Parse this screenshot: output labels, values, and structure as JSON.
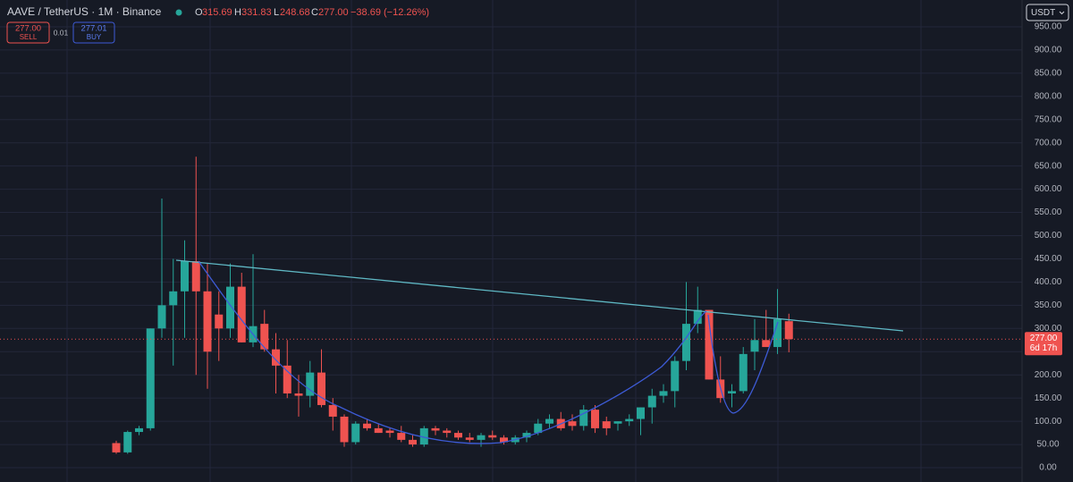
{
  "chart_data": {
    "type": "candlestick",
    "header": {
      "symbol": "AAVE / TetherUS · 1M · Binance",
      "open_label": "O",
      "open": "315.69",
      "high_label": "H",
      "high": "331.83",
      "low_label": "L",
      "low": "248.68",
      "close_label": "C",
      "close": "277.00",
      "change": "−38.69 (−12.26%)"
    },
    "trade": {
      "sell_price": "277.00",
      "sell_label": "SELL",
      "spread": "0.01",
      "buy_price": "277.01",
      "buy_label": "BUY"
    },
    "currency": "USDT",
    "last_price": {
      "value": 277,
      "label": "277.00",
      "countdown": "6d 17h"
    },
    "up_color": "#26a69a",
    "down_color": "#ef5350",
    "ohlc": {
      "open": [
        53,
        33,
        77,
        85,
        300,
        350,
        380,
        445,
        380,
        330,
        300,
        390,
        270,
        310,
        255,
        220,
        160,
        155,
        205,
        135,
        110,
        55,
        95,
        85,
        80,
        75,
        60,
        50,
        85,
        80,
        75,
        65,
        60,
        70,
        65,
        55,
        65,
        75,
        95,
        105,
        100,
        90,
        125,
        100,
        95,
        100,
        105,
        130,
        155,
        165,
        230,
        310,
        340,
        190,
        160,
        165,
        250,
        275,
        260,
        315.69
      ],
      "high": [
        58,
        80,
        90,
        300,
        580,
        450,
        490,
        670,
        440,
        380,
        440,
        420,
        460,
        340,
        290,
        275,
        200,
        230,
        255,
        150,
        115,
        100,
        105,
        95,
        85,
        90,
        70,
        90,
        90,
        85,
        80,
        75,
        75,
        80,
        70,
        70,
        80,
        105,
        115,
        120,
        115,
        135,
        135,
        110,
        100,
        115,
        130,
        170,
        180,
        240,
        400,
        390,
        340,
        240,
        180,
        260,
        320,
        340,
        385,
        331.83
      ],
      "low": [
        30,
        30,
        70,
        80,
        280,
        220,
        280,
        200,
        170,
        230,
        280,
        270,
        260,
        250,
        160,
        150,
        110,
        130,
        130,
        80,
        45,
        50,
        80,
        75,
        65,
        55,
        45,
        45,
        70,
        65,
        60,
        55,
        45,
        60,
        50,
        50,
        55,
        70,
        85,
        80,
        80,
        80,
        75,
        70,
        80,
        90,
        70,
        95,
        140,
        130,
        210,
        290,
        190,
        140,
        130,
        160,
        210,
        260,
        245,
        248.68
      ],
      "close": [
        33,
        77,
        85,
        300,
        350,
        380,
        445,
        380,
        250,
        300,
        390,
        270,
        305,
        255,
        220,
        160,
        155,
        205,
        135,
        110,
        55,
        95,
        85,
        75,
        75,
        60,
        50,
        85,
        80,
        75,
        65,
        60,
        70,
        65,
        55,
        65,
        75,
        95,
        105,
        85,
        90,
        125,
        85,
        85,
        100,
        105,
        130,
        155,
        165,
        230,
        310,
        340,
        190,
        150,
        165,
        245,
        275,
        260,
        320,
        277
      ]
    },
    "ylim": [
      -30.8,
      1007.7
    ],
    "yticks": [
      {
        "value": 0,
        "label": "0.00"
      },
      {
        "value": 50,
        "label": "50.00"
      },
      {
        "value": 100,
        "label": "100.00"
      },
      {
        "value": 150,
        "label": "150.00"
      },
      {
        "value": 200,
        "label": "200.00"
      },
      {
        "value": 250,
        "label": "250.00"
      },
      {
        "value": 300,
        "label": "300.00"
      },
      {
        "value": 350,
        "label": "350.00"
      },
      {
        "value": 400,
        "label": "400.00"
      },
      {
        "value": 450,
        "label": "450.00"
      },
      {
        "value": 500,
        "label": "500.00"
      },
      {
        "value": 550,
        "label": "550.00"
      },
      {
        "value": 600,
        "label": "600.00"
      },
      {
        "value": 650,
        "label": "650.00"
      },
      {
        "value": 700,
        "label": "700.00"
      },
      {
        "value": 750,
        "label": "750.00"
      },
      {
        "value": 800,
        "label": "800.00"
      },
      {
        "value": 850,
        "label": "850.00"
      },
      {
        "value": 900,
        "label": "900.00"
      },
      {
        "value": 950,
        "label": "950.00"
      }
    ],
    "grid": true
  }
}
